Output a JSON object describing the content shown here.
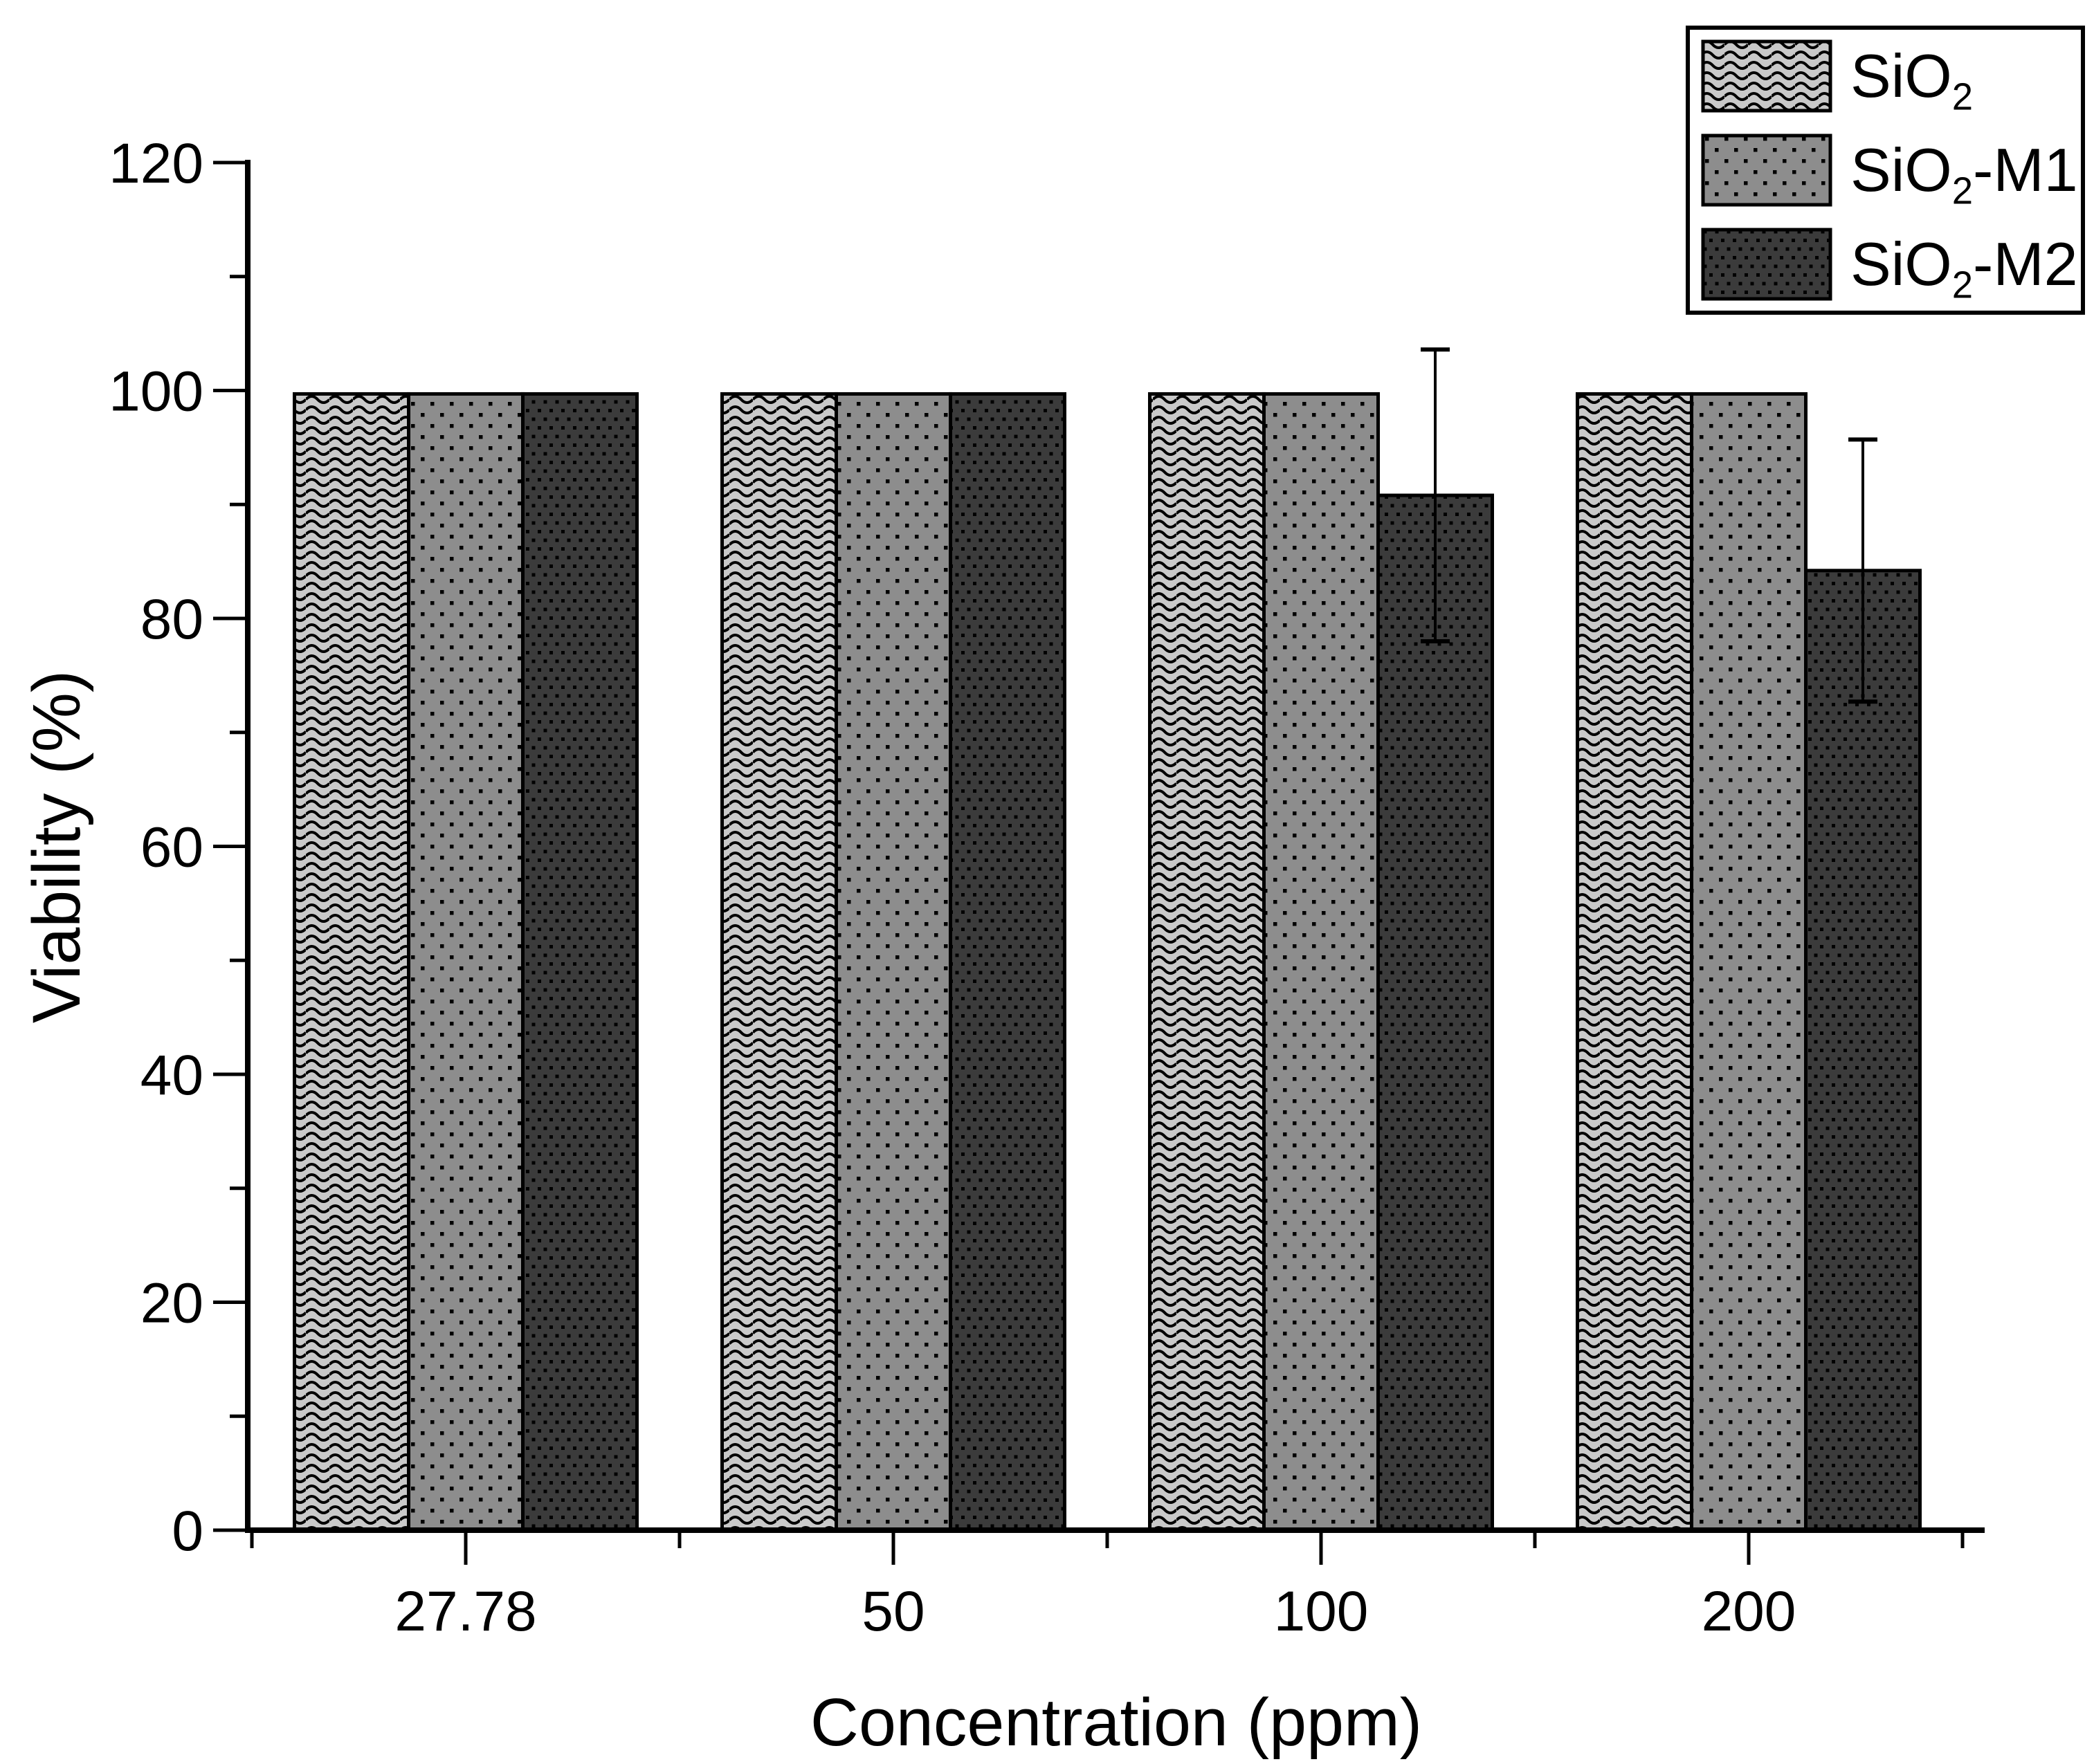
{
  "chart_data": {
    "type": "bar",
    "title": "",
    "xlabel": "Concentration (ppm)",
    "ylabel": "Viability (%)",
    "categories": [
      "27.78",
      "50",
      "100",
      "200"
    ],
    "series": [
      {
        "name": "SiO2",
        "legend": {
          "base": "SiO",
          "sub": "2",
          "suffix": ""
        },
        "pattern": "wave",
        "fill": "#c9c9c9",
        "values": [
          99.7,
          99.7,
          99.7,
          99.7
        ],
        "errors": [
          0,
          0,
          0,
          0
        ]
      },
      {
        "name": "SiO2-M1",
        "legend": {
          "base": "SiO",
          "sub": "2",
          "suffix": "-M1"
        },
        "pattern": "dots-medium",
        "fill": "#8d8d8d",
        "values": [
          99.7,
          99.7,
          99.7,
          99.7
        ],
        "errors": [
          0,
          0,
          0,
          0
        ]
      },
      {
        "name": "SiO2-M2",
        "legend": {
          "base": "SiO",
          "sub": "2",
          "suffix": "-M2"
        },
        "pattern": "dots-dark",
        "fill": "#3b3b3b",
        "values": [
          99.7,
          99.7,
          90.8,
          84.2
        ],
        "errors": [
          0,
          0,
          12.8,
          11.5
        ]
      }
    ],
    "ylim": [
      0,
      120
    ],
    "y_ticks": [
      0,
      20,
      40,
      60,
      80,
      100,
      120
    ],
    "y_minor_step": 10,
    "grid": false,
    "legend_position": "top-right"
  },
  "colors": {
    "background": "#ffffff",
    "axis": "#000000",
    "text": "#000000",
    "bar_outline": "#000000",
    "pattern_ink": "#000000"
  }
}
